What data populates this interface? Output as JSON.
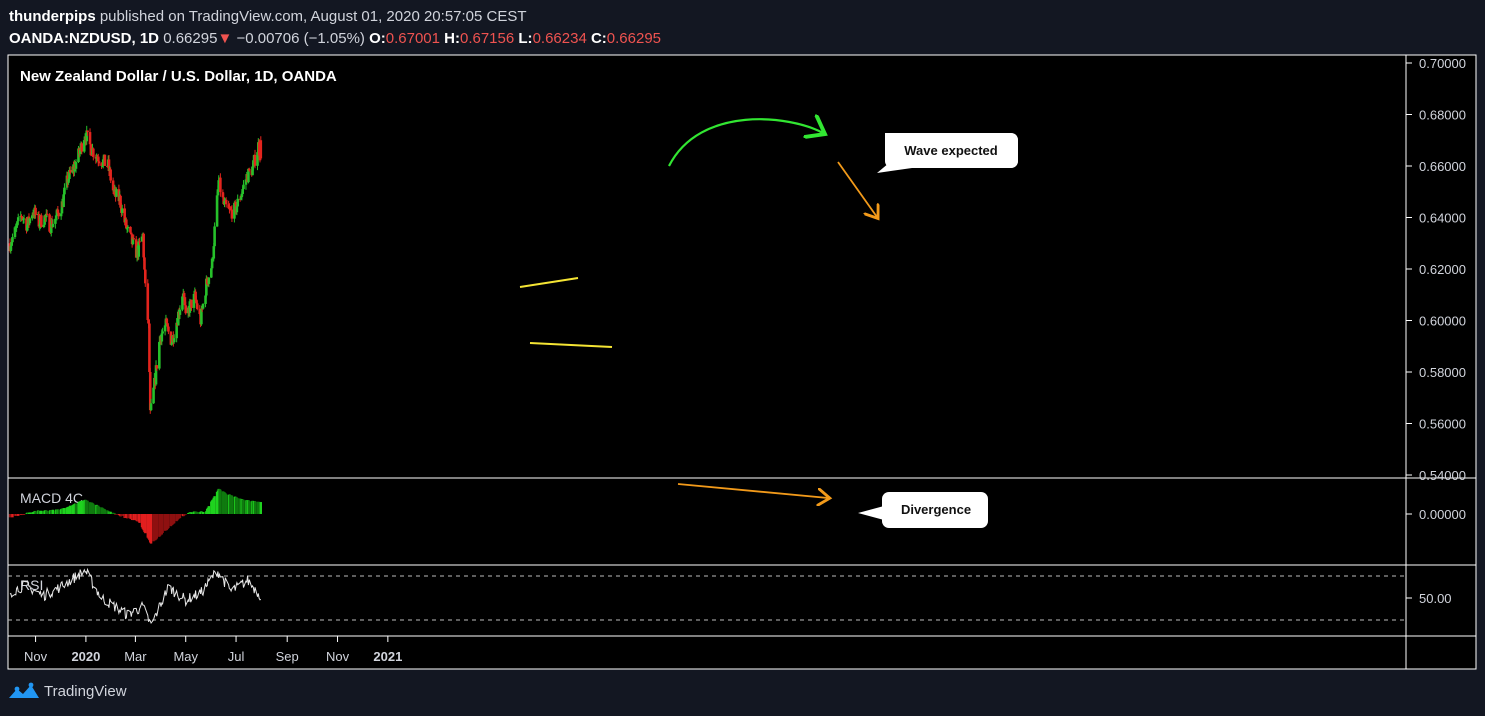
{
  "header": {
    "author": "thunderpips",
    "published_text": "published on TradingView.com, August 01, 2020 20:57:05 CEST",
    "symbol": "OANDA:NZDUSD",
    "interval": "1D",
    "last": "0.66295",
    "change": "−0.00706 (−1.05%)",
    "open_label": "O:",
    "open": "0.67001",
    "high_label": "H:",
    "high": "0.67156",
    "low_label": "L:",
    "low": "0.66234",
    "close_label": "C:",
    "close": "0.66295"
  },
  "colors": {
    "background": "#131722",
    "pane": "#000000",
    "up": "#26c02a",
    "down": "#e3241d",
    "grid_border": "#ffffff",
    "trend_yellow": "#f5e534",
    "arc_green": "#32e632",
    "arrow_orange": "#f29a1a"
  },
  "chart_data": {
    "type": "candlestick",
    "title": "New Zealand Dollar / U.S. Dollar, 1D, OANDA",
    "y_ticks": [
      "0.70000",
      "0.68000",
      "0.66000",
      "0.64000",
      "0.62000",
      "0.60000",
      "0.58000",
      "0.56000",
      "0.54000"
    ],
    "ylim": [
      0.54,
      0.7
    ],
    "x_ticks": [
      "Nov",
      "2020",
      "Mar",
      "May",
      "Jul",
      "Sep",
      "Nov",
      "2021"
    ],
    "close_path": [
      [
        "2019-10-01",
        0.63
      ],
      [
        "2019-10-08",
        0.635
      ],
      [
        "2019-10-15",
        0.641
      ],
      [
        "2019-10-22",
        0.637
      ],
      [
        "2019-10-29",
        0.643
      ],
      [
        "2019-11-05",
        0.638
      ],
      [
        "2019-11-12",
        0.64
      ],
      [
        "2019-11-19",
        0.637
      ],
      [
        "2019-11-26",
        0.64
      ],
      [
        "2019-12-03",
        0.645
      ],
      [
        "2019-12-10",
        0.655
      ],
      [
        "2019-12-17",
        0.659
      ],
      [
        "2019-12-24",
        0.665
      ],
      [
        "2019-12-31",
        0.673
      ],
      [
        "2020-01-07",
        0.667
      ],
      [
        "2020-01-14",
        0.664
      ],
      [
        "2020-01-21",
        0.662
      ],
      [
        "2020-01-28",
        0.66
      ],
      [
        "2020-02-04",
        0.649
      ],
      [
        "2020-02-11",
        0.647
      ],
      [
        "2020-02-18",
        0.637
      ],
      [
        "2020-02-25",
        0.631
      ],
      [
        "2020-03-03",
        0.626
      ],
      [
        "2020-03-10",
        0.633
      ],
      [
        "2020-03-13",
        0.612
      ],
      [
        "2020-03-17",
        0.597
      ],
      [
        "2020-03-19",
        0.563
      ],
      [
        "2020-03-24",
        0.575
      ],
      [
        "2020-03-31",
        0.594
      ],
      [
        "2020-04-07",
        0.598
      ],
      [
        "2020-04-14",
        0.592
      ],
      [
        "2020-04-21",
        0.601
      ],
      [
        "2020-04-28",
        0.612
      ],
      [
        "2020-05-01",
        0.6
      ],
      [
        "2020-05-05",
        0.605
      ],
      [
        "2020-05-12",
        0.609
      ],
      [
        "2020-05-19",
        0.6
      ],
      [
        "2020-05-26",
        0.614
      ],
      [
        "2020-06-02",
        0.622
      ],
      [
        "2020-06-05",
        0.635
      ],
      [
        "2020-06-10",
        0.654
      ],
      [
        "2020-06-16",
        0.645
      ],
      [
        "2020-06-23",
        0.642
      ],
      [
        "2020-06-30",
        0.643
      ],
      [
        "2020-07-07",
        0.649
      ],
      [
        "2020-07-14",
        0.656
      ],
      [
        "2020-07-21",
        0.659
      ],
      [
        "2020-07-28",
        0.668
      ],
      [
        "2020-07-31",
        0.663
      ]
    ],
    "last_candle": {
      "date": "2020-07-31",
      "open": 0.67001,
      "high": 0.67156,
      "low": 0.66234,
      "close": 0.66295
    },
    "indicators": [
      {
        "name": "MACD 4C",
        "type": "histogram",
        "y_ticks": [
          "0.00000"
        ],
        "values_path": [
          [
            "2019-10-01",
            -0.001
          ],
          [
            "2019-11-01",
            0.0008
          ],
          [
            "2019-12-01",
            0.0012
          ],
          [
            "2019-12-31",
            0.004
          ],
          [
            "2020-01-28",
            0.0008
          ],
          [
            "2020-02-20",
            -0.0012
          ],
          [
            "2020-03-05",
            -0.002
          ],
          [
            "2020-03-20",
            -0.0082
          ],
          [
            "2020-04-05",
            -0.005
          ],
          [
            "2020-04-25",
            -0.0008
          ],
          [
            "2020-05-10",
            0.0008
          ],
          [
            "2020-05-25",
            0.0005
          ],
          [
            "2020-06-10",
            0.007
          ],
          [
            "2020-06-20",
            0.0055
          ],
          [
            "2020-07-10",
            0.004
          ],
          [
            "2020-07-31",
            0.0032
          ]
        ],
        "annotation": "Divergence"
      },
      {
        "name": "RSI",
        "type": "line",
        "y_ticks": [
          "50.00"
        ],
        "levels": [
          70,
          30
        ],
        "values_path": [
          [
            "2019-10-01",
            55
          ],
          [
            "2019-10-20",
            62
          ],
          [
            "2019-11-10",
            52
          ],
          [
            "2019-12-01",
            60
          ],
          [
            "2019-12-31",
            75
          ],
          [
            "2020-01-20",
            50
          ],
          [
            "2020-02-20",
            35
          ],
          [
            "2020-03-10",
            42
          ],
          [
            "2020-03-20",
            25
          ],
          [
            "2020-04-10",
            60
          ],
          [
            "2020-05-01",
            48
          ],
          [
            "2020-05-20",
            55
          ],
          [
            "2020-06-08",
            75
          ],
          [
            "2020-06-25",
            56
          ],
          [
            "2020-07-15",
            66
          ],
          [
            "2020-07-31",
            52
          ]
        ]
      }
    ],
    "annotations": [
      "Wave expected",
      "Divergence"
    ]
  },
  "footer": {
    "brand": "TradingView",
    "logo_icon": "tradingview-logo-icon"
  }
}
